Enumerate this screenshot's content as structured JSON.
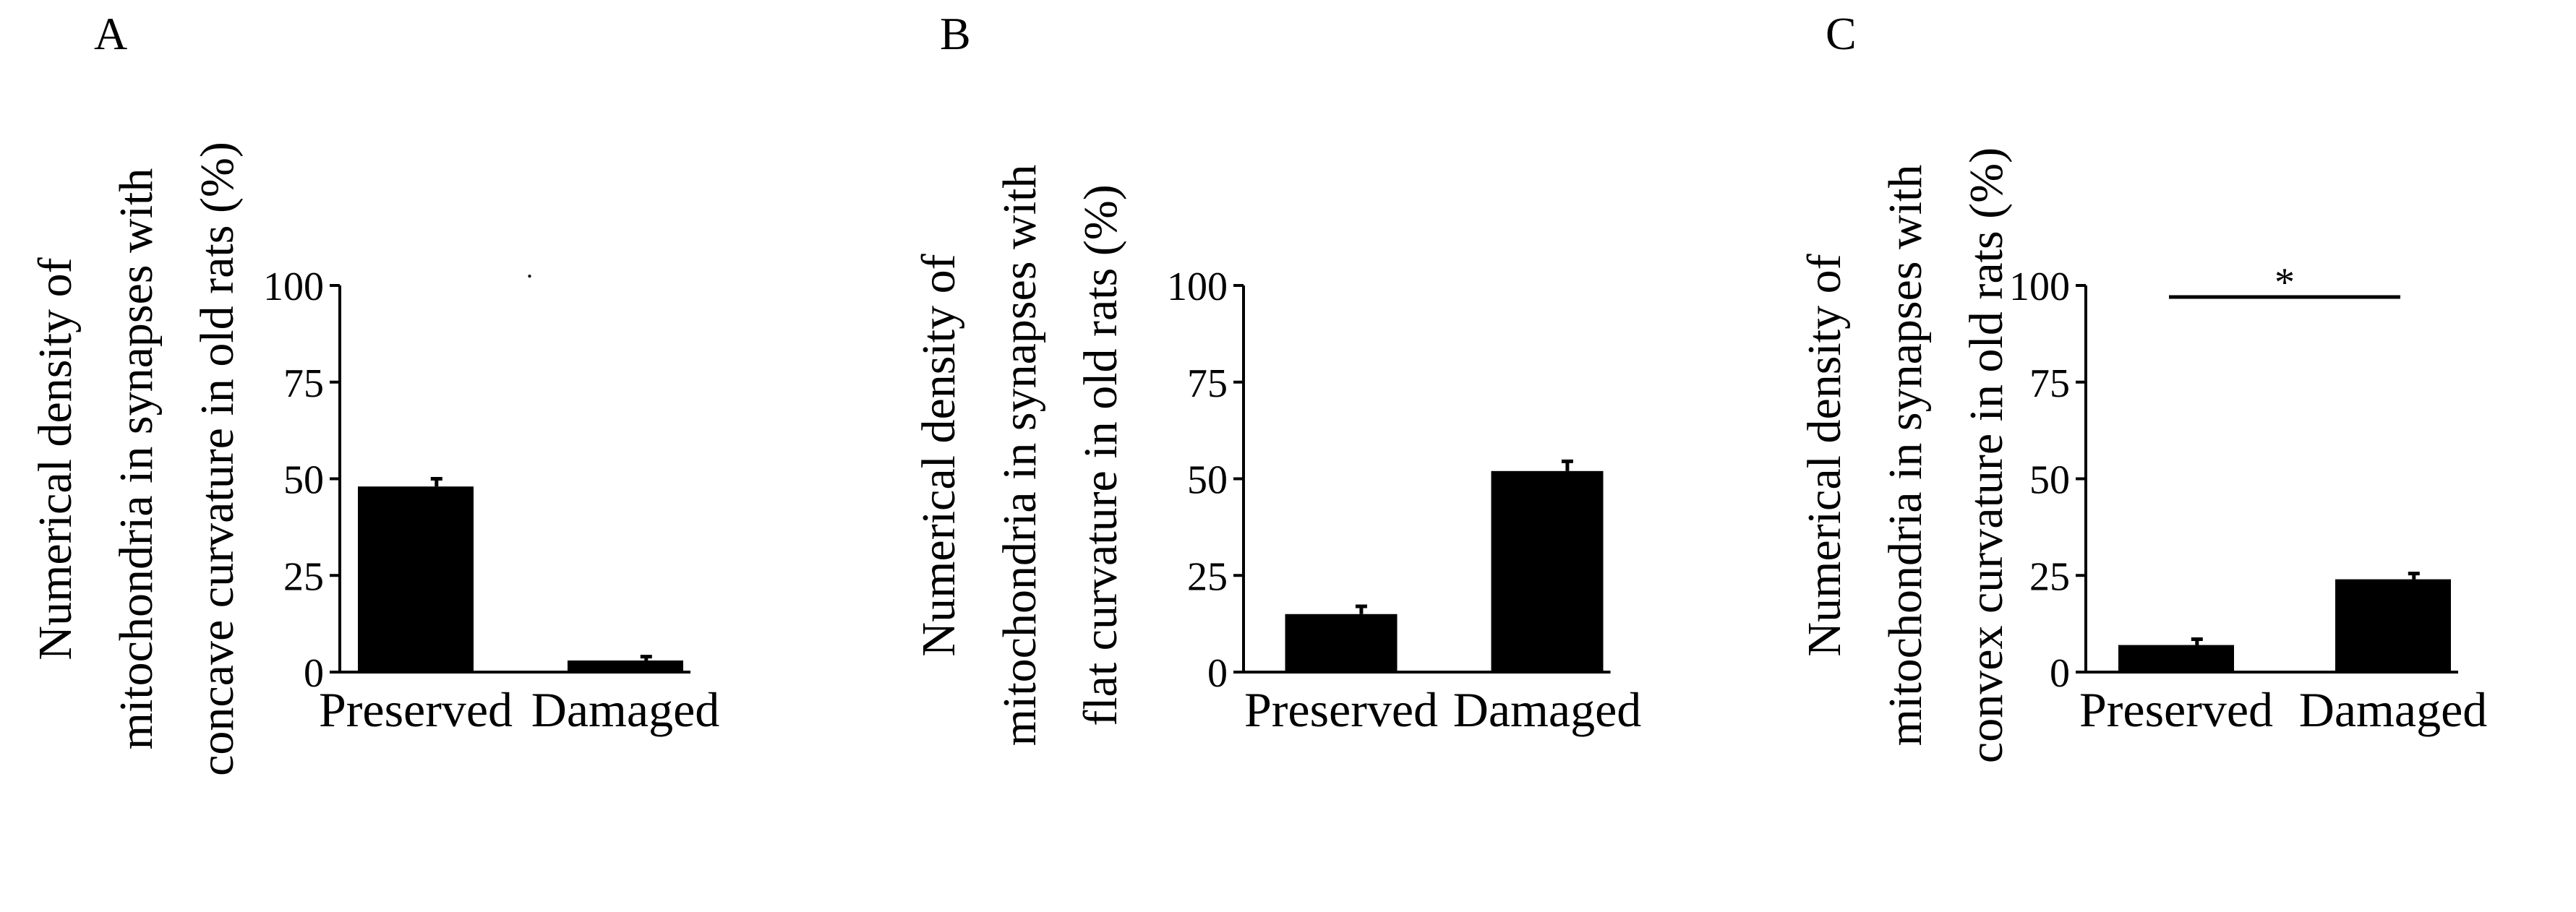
{
  "figure": {
    "description_panels": 3
  },
  "chart_data": [
    {
      "type": "bar",
      "panel_label": "A",
      "ylabel_lines": [
        "Numerical density of",
        "mitochondria in synapses with",
        "concave curvature in old rats (%)"
      ],
      "categories": [
        "Preserved",
        "Damaged"
      ],
      "values": [
        48,
        3
      ],
      "errors": [
        2,
        1
      ],
      "ylim": [
        0,
        100
      ],
      "yticks": [
        "0",
        "25",
        "50",
        "75",
        "100"
      ],
      "ytick_values": [
        0,
        25,
        50,
        75,
        100
      ],
      "significance": null
    },
    {
      "type": "bar",
      "panel_label": "B",
      "ylabel_lines": [
        "Numerical density of",
        "mitochondria in synapses with",
        "flat curvature in old rats (%)"
      ],
      "categories": [
        "Preserved",
        "Damaged"
      ],
      "values": [
        15,
        52
      ],
      "errors": [
        2,
        2.5
      ],
      "ylim": [
        0,
        100
      ],
      "yticks": [
        "0",
        "25",
        "50",
        "75",
        "100"
      ],
      "ytick_values": [
        0,
        25,
        50,
        75,
        100
      ],
      "significance": null
    },
    {
      "type": "bar",
      "panel_label": "C",
      "ylabel_lines": [
        "Numerical density of",
        "mitochondria in synapses with",
        "convex curvature in old rats (%)"
      ],
      "categories": [
        "Preserved",
        "Damaged"
      ],
      "values": [
        7,
        24
      ],
      "errors": [
        1.5,
        1.5
      ],
      "ylim": [
        0,
        100
      ],
      "yticks": [
        "0",
        "25",
        "50",
        "75",
        "100"
      ],
      "ytick_values": [
        0,
        25,
        50,
        75,
        100
      ],
      "significance": {
        "symbol": "*",
        "level": 97
      }
    }
  ]
}
